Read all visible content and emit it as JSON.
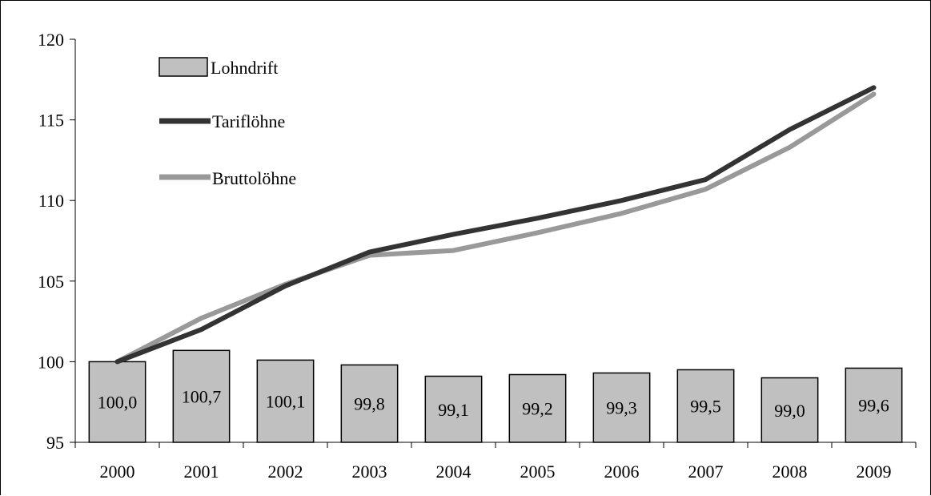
{
  "chart_data": {
    "type": "bar",
    "title": "",
    "xlabel": "",
    "ylabel": "",
    "categories": [
      "2000",
      "2001",
      "2002",
      "2003",
      "2004",
      "2005",
      "2006",
      "2007",
      "2008",
      "2009"
    ],
    "ylim": [
      95,
      120
    ],
    "yticks": [
      "95",
      "100",
      "105",
      "110",
      "115",
      "120"
    ],
    "grid": false,
    "legend_position": "top-left",
    "series": [
      {
        "name": "Lohndrift",
        "type": "bar",
        "color": "#c0c0c0",
        "values": [
          100.0,
          100.7,
          100.1,
          99.8,
          99.1,
          99.2,
          99.3,
          99.5,
          99.0,
          99.6
        ],
        "labels": [
          "100,0",
          "100,7",
          "100,1",
          "99,8",
          "99,1",
          "99,2",
          "99,3",
          "99,5",
          "99,0",
          "99,6"
        ]
      },
      {
        "name": "Tariflöhne",
        "type": "line",
        "color": "#333333",
        "values": [
          100.0,
          102.0,
          104.7,
          106.8,
          107.9,
          108.9,
          110.0,
          111.3,
          114.4,
          117.0
        ]
      },
      {
        "name": "Bruttolöhne",
        "type": "line",
        "color": "#999999",
        "values": [
          100.0,
          102.7,
          104.8,
          106.6,
          106.9,
          108.0,
          109.2,
          110.7,
          113.3,
          116.6
        ]
      }
    ]
  }
}
